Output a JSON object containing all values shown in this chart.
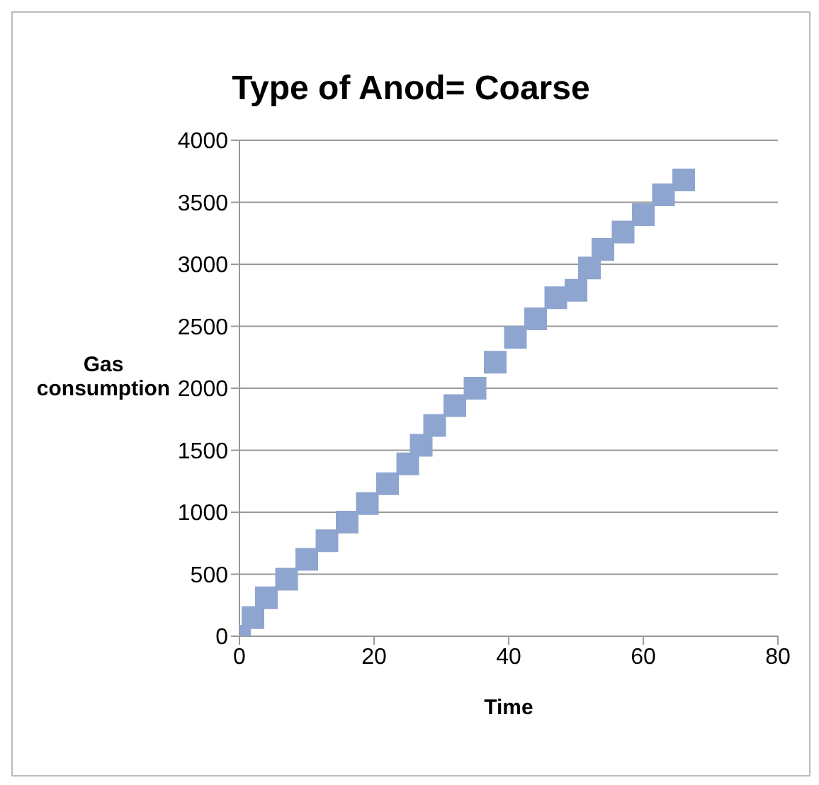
{
  "chart_data": {
    "type": "scatter",
    "title": "Type of Anod= Coarse",
    "xlabel": "Time",
    "ylabel": "Gas consumption",
    "x": [
      0,
      2,
      4,
      7,
      10,
      13,
      16,
      19,
      22,
      25,
      27,
      29,
      32,
      35,
      38,
      41,
      44,
      47,
      50,
      52,
      54,
      57,
      60,
      63,
      66
    ],
    "values": [
      0,
      150,
      310,
      460,
      620,
      770,
      920,
      1070,
      1230,
      1390,
      1540,
      1700,
      1860,
      2000,
      2210,
      2410,
      2560,
      2730,
      2790,
      2970,
      3120,
      3260,
      3400,
      3560,
      3680
    ],
    "color": "#8ea5cf",
    "marker": "square",
    "xlim": [
      0,
      80
    ],
    "xticks": [
      0,
      20,
      40,
      60,
      80
    ],
    "ylim": [
      0,
      4000
    ],
    "yticks": [
      0,
      500,
      1000,
      1500,
      2000,
      2500,
      3000,
      3500,
      4000
    ],
    "grid": "y",
    "legend": false
  }
}
